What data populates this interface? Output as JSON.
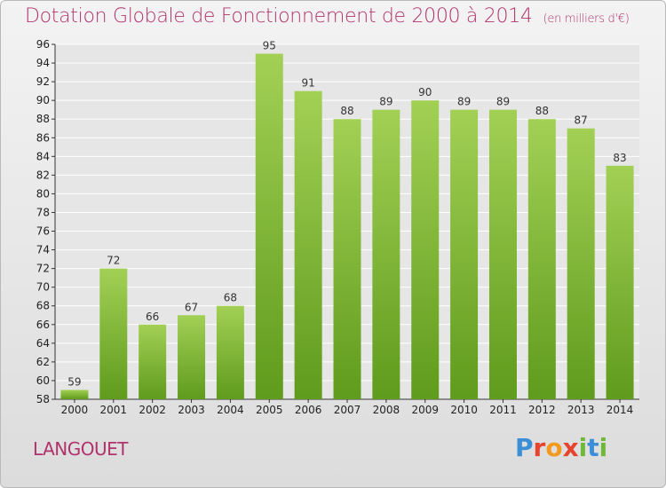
{
  "title": "Dotation Globale de Fonctionnement de 2000 à 2014",
  "unit": "(en milliers d'€)",
  "commune": "LANGOUET",
  "logo": {
    "letters": [
      "P",
      "r",
      "o",
      "x",
      "i",
      "t",
      "i"
    ],
    "colors": [
      "#3b8fd6",
      "#e8432e",
      "#f39a1e",
      "#e8432e",
      "#6fb93a",
      "#3b8fd6",
      "#6fb93a"
    ]
  },
  "colors": {
    "bar_top": "#a2d055",
    "bar_bottom": "#5f9b1c",
    "title": "#b0336c",
    "grid": "#ffffff"
  },
  "chart_data": {
    "type": "bar",
    "title": "Dotation Globale de Fonctionnement de 2000 à 2014",
    "categories": [
      "2000",
      "2001",
      "2002",
      "2003",
      "2004",
      "2005",
      "2006",
      "2007",
      "2008",
      "2009",
      "2010",
      "2011",
      "2012",
      "2013",
      "2014"
    ],
    "values": [
      59,
      72,
      66,
      67,
      68,
      95,
      91,
      88,
      89,
      90,
      89,
      89,
      88,
      87,
      83
    ],
    "ylim": [
      58,
      96
    ],
    "yticks": [
      58,
      60,
      62,
      64,
      66,
      68,
      70,
      72,
      74,
      76,
      78,
      80,
      82,
      84,
      86,
      88,
      90,
      92,
      94,
      96
    ],
    "grid": true
  }
}
